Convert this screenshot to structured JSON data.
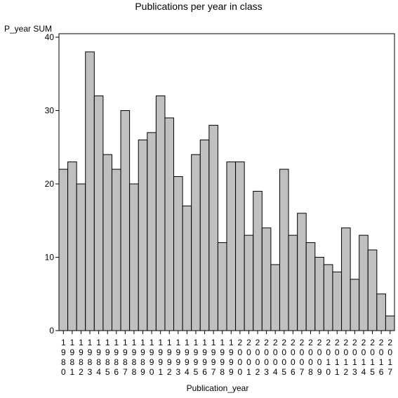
{
  "chart_data": {
    "type": "bar",
    "title": "Publications per year in class",
    "xlabel": "Publication_year",
    "ylabel": "P_year SUM",
    "ylim": [
      0,
      40
    ],
    "yticks": [
      0,
      10,
      20,
      30,
      40
    ],
    "grid": false,
    "bar_color": "#c0c0c0",
    "categories": [
      "1980",
      "1981",
      "1982",
      "1983",
      "1984",
      "1985",
      "1986",
      "1987",
      "1988",
      "1989",
      "1990",
      "1991",
      "1992",
      "1993",
      "1994",
      "1995",
      "1996",
      "1997",
      "1998",
      "1999",
      "2000",
      "2001",
      "2002",
      "2003",
      "2004",
      "2005",
      "2006",
      "2007",
      "2008",
      "2009",
      "2010",
      "2011",
      "2012",
      "2013",
      "2014",
      "2015",
      "2016",
      "2017"
    ],
    "values": [
      22,
      23,
      20,
      38,
      32,
      24,
      22,
      30,
      20,
      26,
      27,
      32,
      29,
      21,
      17,
      24,
      26,
      28,
      12,
      23,
      23,
      13,
      19,
      14,
      9,
      22,
      13,
      16,
      12,
      10,
      9,
      8,
      14,
      7,
      13,
      11,
      5,
      2
    ]
  }
}
